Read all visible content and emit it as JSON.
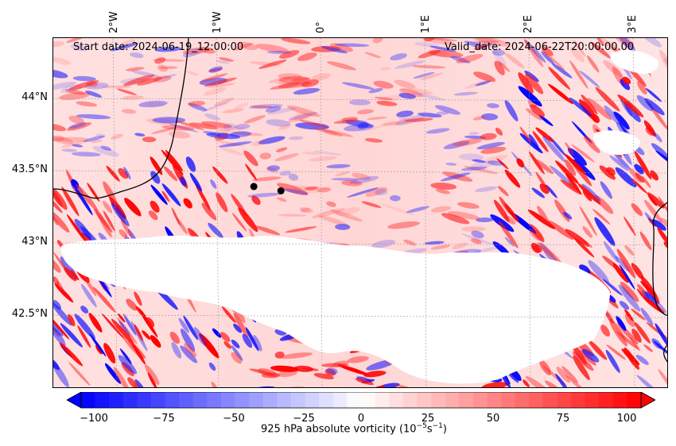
{
  "header": {
    "start_date": "Start date: 2024-06-19_12:00:00",
    "valid_date": "Valid_date: 2024-06-22T20:00:00.00"
  },
  "axes": {
    "lon_labels": [
      "2°W",
      "1°W",
      "0°",
      "1°E",
      "2°E",
      "3°E"
    ],
    "lat_labels": [
      "44°N",
      "43.5°N",
      "43°N",
      "42.5°N"
    ]
  },
  "colorbar": {
    "ticks": [
      "−100",
      "−75",
      "−50",
      "−25",
      "0",
      "25",
      "50",
      "75",
      "100"
    ],
    "title_prefix": "925 hPa absolute vorticity (10",
    "title_exp1": "−5",
    "title_mid": "s",
    "title_exp2": "−1",
    "title_suffix": ")",
    "range": [
      -100,
      100
    ],
    "color_low": "#0000ff",
    "color_mid": "#ffffff",
    "color_high": "#ff0000"
  },
  "markers": [
    {
      "name": "point-1",
      "lon": -0.64,
      "lat": 43.39
    },
    {
      "name": "point-2",
      "lon": -0.38,
      "lat": 43.36
    }
  ]
}
